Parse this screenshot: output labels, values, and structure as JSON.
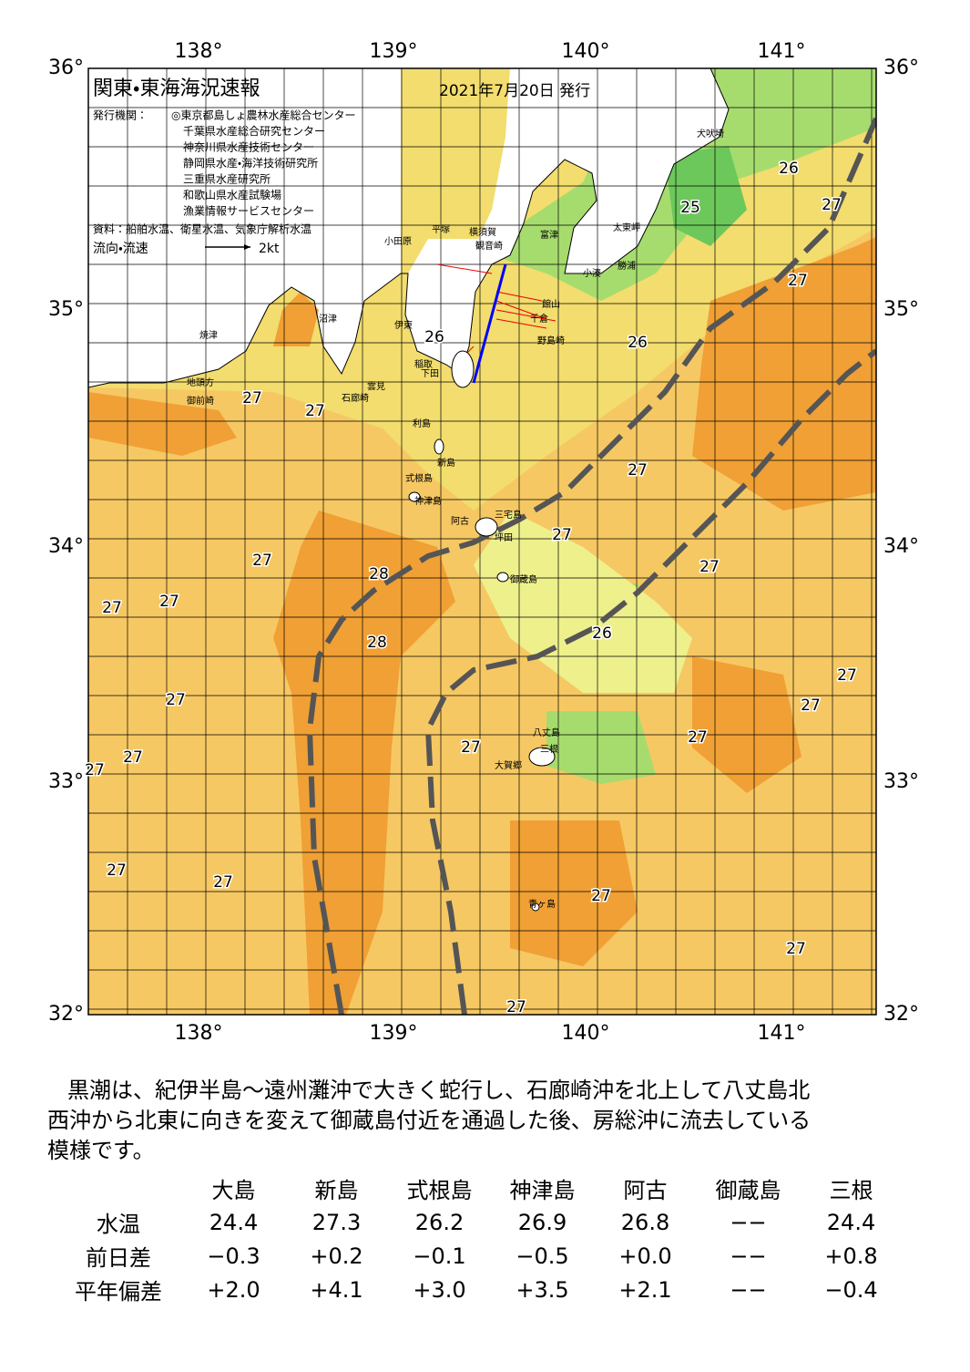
{
  "header": {
    "title": "関東・東海海況速報",
    "date": "2021年7月20日 発行",
    "issuer_label": "発行機関：",
    "issuers": [
      "◎東京都島しょ農林水産総合センター",
      "千葉県水産総合研究センター",
      "神奈川県水産技術センター",
      "静岡県水産・海洋技術研究所",
      "三重県水産研究所",
      "和歌山県水産試験場",
      "漁業情報サービスセンター"
    ],
    "source": "資料：船舶水温、衛星水温、気象庁解析水温",
    "legend_label": "流向・流速",
    "legend_scale": "2kt"
  },
  "map": {
    "lon_labels": [
      "138°",
      "139°",
      "140°",
      "141°"
    ],
    "lat_labels": [
      "36°",
      "35°",
      "34°",
      "33°",
      "32°"
    ],
    "places": [
      "犬吠埼",
      "太東岬",
      "勝浦",
      "小湊",
      "富津",
      "横須賀",
      "観音崎",
      "平塚",
      "小田原",
      "館山",
      "千倉",
      "野島崎",
      "伊東",
      "沼津",
      "焼津",
      "稲取",
      "下田",
      "雲見",
      "石廊崎",
      "地頭方",
      "御前崎",
      "利島",
      "新島",
      "式根島",
      "神津島",
      "三宅島",
      "阿古",
      "坪田",
      "御蔵島",
      "八丈島",
      "三根",
      "大賀郷",
      "青ヶ島"
    ],
    "temp_labels": [
      "26",
      "27",
      "25",
      "27",
      "26",
      "26",
      "27",
      "27",
      "27",
      "27",
      "27",
      "28",
      "27",
      "27",
      "27",
      "26",
      "28",
      "27",
      "27",
      "27",
      "27",
      "27",
      "27",
      "27",
      "27",
      "27",
      "27",
      "27",
      "27"
    ]
  },
  "summary": [
    "黒潮は、紀伊半島～遠州灘沖で大きく蛇行し、石廊崎沖を北上して八丈島北",
    "西沖から北東に向きを変えて御蔵島付近を通過した後、房総沖に流去している",
    "模様です。"
  ],
  "table": {
    "columns": [
      "大島",
      "新島",
      "式根島",
      "神津島",
      "阿古",
      "御蔵島",
      "三根"
    ],
    "rows": [
      {
        "label": "水温",
        "values": [
          "24.4",
          "27.3",
          "26.2",
          "26.9",
          "26.8",
          "−−",
          "24.4"
        ]
      },
      {
        "label": "前日差",
        "values": [
          "−0.3",
          "+0.2",
          "−0.1",
          "−0.5",
          "+0.0",
          "−−",
          "+0.8"
        ]
      },
      {
        "label": "平年偏差",
        "values": [
          "+2.0",
          "+4.1",
          "+3.0",
          "+3.5",
          "+2.1",
          "−−",
          "−0.4"
        ]
      }
    ]
  }
}
